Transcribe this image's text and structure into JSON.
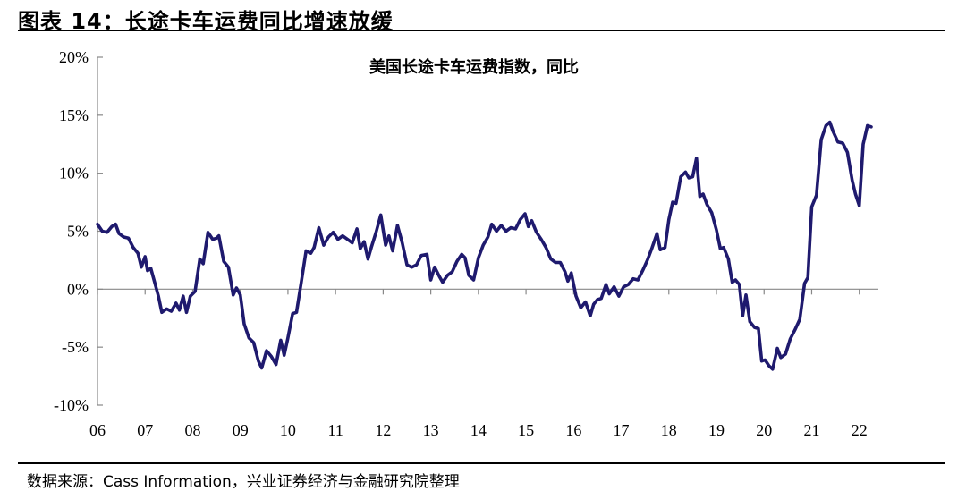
{
  "header": {
    "title": "图表 14：长途卡车运费同比增速放缓"
  },
  "source": "数据来源：Cass Information，兴业证券经济与金融研究院整理",
  "chart_data": {
    "type": "line",
    "title": "美国长途卡车运费指数，同比",
    "xlabel": "",
    "ylabel": "",
    "ylim": [
      -10,
      20
    ],
    "xlim": [
      2006.0,
      2022.4
    ],
    "y_ticks": [
      -10,
      -5,
      0,
      5,
      10,
      15,
      20
    ],
    "y_tick_labels": [
      "-10%",
      "-5%",
      "0%",
      "5%",
      "10%",
      "15%",
      "20%"
    ],
    "x_ticks": [
      2006,
      2007,
      2008,
      2009,
      2010,
      2011,
      2012,
      2013,
      2014,
      2015,
      2016,
      2017,
      2018,
      2019,
      2020,
      2021,
      2022
    ],
    "x_tick_labels": [
      "06",
      "07",
      "08",
      "09",
      "10",
      "11",
      "12",
      "13",
      "14",
      "15",
      "16",
      "17",
      "18",
      "19",
      "20",
      "21",
      "22"
    ],
    "grid": false,
    "legend": "none",
    "series": [
      {
        "color": "#1f1a6e",
        "points": [
          [
            2006.0,
            5.6
          ],
          [
            2006.1,
            5.0
          ],
          [
            2006.2,
            4.9
          ],
          [
            2006.3,
            5.4
          ],
          [
            2006.38,
            5.6
          ],
          [
            2006.45,
            4.8
          ],
          [
            2006.55,
            4.5
          ],
          [
            2006.65,
            4.4
          ],
          [
            2006.75,
            3.6
          ],
          [
            2006.85,
            3.1
          ],
          [
            2006.92,
            1.9
          ],
          [
            2007.0,
            2.8
          ],
          [
            2007.05,
            1.6
          ],
          [
            2007.12,
            1.8
          ],
          [
            2007.2,
            0.6
          ],
          [
            2007.28,
            -0.6
          ],
          [
            2007.35,
            -2.0
          ],
          [
            2007.45,
            -1.7
          ],
          [
            2007.55,
            -1.9
          ],
          [
            2007.65,
            -1.2
          ],
          [
            2007.72,
            -1.8
          ],
          [
            2007.8,
            -0.6
          ],
          [
            2007.87,
            -2.0
          ],
          [
            2007.95,
            -0.6
          ],
          [
            2008.05,
            -0.2
          ],
          [
            2008.15,
            2.6
          ],
          [
            2008.22,
            2.2
          ],
          [
            2008.32,
            4.9
          ],
          [
            2008.42,
            4.3
          ],
          [
            2008.5,
            4.4
          ],
          [
            2008.55,
            4.6
          ],
          [
            2008.65,
            2.4
          ],
          [
            2008.75,
            1.9
          ],
          [
            2008.85,
            -0.5
          ],
          [
            2008.92,
            0.1
          ],
          [
            2009.0,
            -0.5
          ],
          [
            2009.08,
            -3.0
          ],
          [
            2009.18,
            -4.2
          ],
          [
            2009.28,
            -4.6
          ],
          [
            2009.38,
            -6.2
          ],
          [
            2009.45,
            -6.8
          ],
          [
            2009.55,
            -5.3
          ],
          [
            2009.65,
            -5.8
          ],
          [
            2009.75,
            -6.5
          ],
          [
            2009.85,
            -4.4
          ],
          [
            2009.92,
            -5.7
          ],
          [
            2010.0,
            -4.2
          ],
          [
            2010.1,
            -2.1
          ],
          [
            2010.18,
            -2.0
          ],
          [
            2010.28,
            0.6
          ],
          [
            2010.38,
            3.3
          ],
          [
            2010.48,
            3.1
          ],
          [
            2010.55,
            3.6
          ],
          [
            2010.65,
            5.3
          ],
          [
            2010.75,
            3.8
          ],
          [
            2010.85,
            4.5
          ],
          [
            2010.95,
            4.9
          ],
          [
            2011.05,
            4.3
          ],
          [
            2011.15,
            4.6
          ],
          [
            2011.25,
            4.3
          ],
          [
            2011.35,
            4.0
          ],
          [
            2011.45,
            5.2
          ],
          [
            2011.52,
            3.5
          ],
          [
            2011.6,
            4.1
          ],
          [
            2011.68,
            2.6
          ],
          [
            2011.75,
            3.6
          ],
          [
            2011.85,
            4.9
          ],
          [
            2011.95,
            6.4
          ],
          [
            2012.05,
            3.8
          ],
          [
            2012.12,
            4.6
          ],
          [
            2012.2,
            3.3
          ],
          [
            2012.3,
            5.5
          ],
          [
            2012.4,
            4.0
          ],
          [
            2012.5,
            2.1
          ],
          [
            2012.6,
            1.9
          ],
          [
            2012.7,
            2.1
          ],
          [
            2012.8,
            2.9
          ],
          [
            2012.92,
            3.0
          ],
          [
            2013.0,
            0.8
          ],
          [
            2013.08,
            1.9
          ],
          [
            2013.18,
            1.1
          ],
          [
            2013.25,
            0.6
          ],
          [
            2013.35,
            1.2
          ],
          [
            2013.45,
            1.5
          ],
          [
            2013.55,
            2.4
          ],
          [
            2013.65,
            3.0
          ],
          [
            2013.72,
            2.7
          ],
          [
            2013.8,
            1.2
          ],
          [
            2013.9,
            0.8
          ],
          [
            2014.0,
            2.7
          ],
          [
            2014.1,
            3.8
          ],
          [
            2014.2,
            4.5
          ],
          [
            2014.28,
            5.6
          ],
          [
            2014.38,
            5.0
          ],
          [
            2014.48,
            5.5
          ],
          [
            2014.58,
            5.0
          ],
          [
            2014.68,
            5.3
          ],
          [
            2014.78,
            5.2
          ],
          [
            2014.88,
            6.0
          ],
          [
            2014.98,
            6.5
          ],
          [
            2015.05,
            5.4
          ],
          [
            2015.12,
            5.9
          ],
          [
            2015.22,
            4.9
          ],
          [
            2015.32,
            4.3
          ],
          [
            2015.42,
            3.6
          ],
          [
            2015.52,
            2.6
          ],
          [
            2015.62,
            2.3
          ],
          [
            2015.72,
            2.3
          ],
          [
            2015.82,
            1.5
          ],
          [
            2015.88,
            0.7
          ],
          [
            2015.95,
            1.4
          ],
          [
            2016.05,
            -0.6
          ],
          [
            2016.15,
            -1.6
          ],
          [
            2016.25,
            -1.1
          ],
          [
            2016.35,
            -2.3
          ],
          [
            2016.42,
            -1.3
          ],
          [
            2016.5,
            -0.9
          ],
          [
            2016.58,
            -0.8
          ],
          [
            2016.68,
            0.4
          ],
          [
            2016.75,
            -0.4
          ],
          [
            2016.85,
            0.2
          ],
          [
            2016.95,
            -0.6
          ],
          [
            2017.05,
            0.2
          ],
          [
            2017.15,
            0.4
          ],
          [
            2017.25,
            0.9
          ],
          [
            2017.35,
            0.8
          ],
          [
            2017.45,
            1.6
          ],
          [
            2017.55,
            2.5
          ],
          [
            2017.65,
            3.6
          ],
          [
            2017.75,
            4.8
          ],
          [
            2017.82,
            3.4
          ],
          [
            2017.92,
            3.6
          ],
          [
            2018.0,
            6.0
          ],
          [
            2018.08,
            7.5
          ],
          [
            2018.15,
            7.4
          ],
          [
            2018.25,
            9.7
          ],
          [
            2018.35,
            10.1
          ],
          [
            2018.42,
            9.6
          ],
          [
            2018.5,
            9.7
          ],
          [
            2018.58,
            11.3
          ],
          [
            2018.65,
            8.0
          ],
          [
            2018.72,
            8.2
          ],
          [
            2018.8,
            7.3
          ],
          [
            2018.9,
            6.6
          ],
          [
            2019.0,
            5.1
          ],
          [
            2019.08,
            3.5
          ],
          [
            2019.15,
            3.6
          ],
          [
            2019.25,
            2.6
          ],
          [
            2019.33,
            0.6
          ],
          [
            2019.4,
            0.8
          ],
          [
            2019.48,
            0.4
          ],
          [
            2019.55,
            -2.3
          ],
          [
            2019.62,
            -0.5
          ],
          [
            2019.7,
            -2.8
          ],
          [
            2019.8,
            -3.3
          ],
          [
            2019.88,
            -3.4
          ],
          [
            2019.95,
            -6.2
          ],
          [
            2020.02,
            -6.1
          ],
          [
            2020.1,
            -6.6
          ],
          [
            2020.18,
            -6.9
          ],
          [
            2020.28,
            -5.1
          ],
          [
            2020.35,
            -5.9
          ],
          [
            2020.45,
            -5.6
          ],
          [
            2020.55,
            -4.3
          ],
          [
            2020.65,
            -3.5
          ],
          [
            2020.75,
            -2.6
          ],
          [
            2020.85,
            0.5
          ],
          [
            2020.92,
            1.0
          ],
          [
            2021.0,
            7.1
          ],
          [
            2021.1,
            8.1
          ],
          [
            2021.2,
            12.9
          ],
          [
            2021.3,
            14.1
          ],
          [
            2021.38,
            14.4
          ],
          [
            2021.45,
            13.6
          ],
          [
            2021.55,
            12.7
          ],
          [
            2021.65,
            12.6
          ],
          [
            2021.75,
            11.8
          ],
          [
            2021.85,
            9.4
          ],
          [
            2021.92,
            8.2
          ],
          [
            2022.0,
            7.2
          ],
          [
            2022.08,
            12.5
          ],
          [
            2022.17,
            14.1
          ],
          [
            2022.25,
            14.0
          ]
        ]
      }
    ]
  }
}
